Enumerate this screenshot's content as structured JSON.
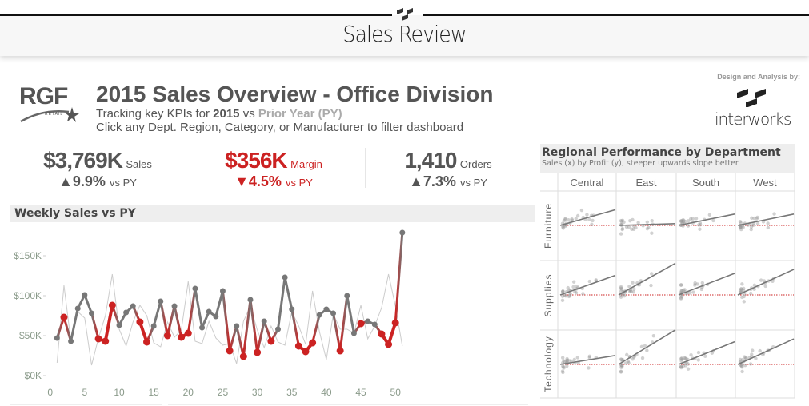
{
  "app": {
    "title": "Sales Review"
  },
  "header": {
    "logo_text": "RGF",
    "logo_sub": "RETAIL",
    "title": "2015 Sales Overview - Office Division",
    "sub_prefix": "Tracking key KPIs for ",
    "sub_year": "2015",
    "sub_vs": " vs ",
    "sub_py": "Prior Year (PY)",
    "instruction": "Click any Dept. Region, Category, or Manufacturer to filter dashboard",
    "credit": "Design and Analysis by:",
    "partner_logo": "interworks"
  },
  "kpis": [
    {
      "value": "$3,769K",
      "label": "Sales",
      "arrow": "▲",
      "delta": "9.9%",
      "vs": "vs PY",
      "color": "#555555"
    },
    {
      "value": "$356K",
      "label": "Margin",
      "arrow": "▼",
      "delta": "4.5%",
      "vs": "vs PY",
      "color": "#cc2222"
    },
    {
      "value": "1,410",
      "label": "Orders",
      "arrow": "▲",
      "delta": "7.3%",
      "vs": "vs PY",
      "color": "#555555"
    }
  ],
  "weekly": {
    "title": "Weekly Sales vs PY"
  },
  "regional": {
    "title": "Regional Performance by Department",
    "subtitle": "Sales (x) by Profit (y), steeper upwards slope better"
  },
  "colors": {
    "below_py": "#cc2222",
    "above_py": "#777777",
    "py": "#cccccc",
    "zero_line": "#cc2222"
  },
  "chart_data": [
    {
      "type": "line",
      "title": "Weekly Sales vs PY",
      "x_ticks": [
        "0",
        "5",
        "10",
        "15",
        "20",
        "25",
        "30",
        "35",
        "40",
        "45",
        "50"
      ],
      "y_ticks": [
        "$0K",
        "$50K",
        "$100K",
        "$150K"
      ],
      "ylim": [
        0,
        190
      ],
      "xlim": [
        -1,
        52
      ],
      "x": [
        1,
        2,
        3,
        4,
        5,
        6,
        7,
        8,
        9,
        10,
        11,
        12,
        13,
        14,
        15,
        16,
        17,
        18,
        19,
        20,
        21,
        22,
        23,
        24,
        25,
        26,
        27,
        28,
        29,
        30,
        31,
        32,
        33,
        34,
        35,
        36,
        37,
        38,
        39,
        40,
        41,
        42,
        43,
        44,
        45,
        46,
        47,
        48,
        49,
        50,
        51
      ],
      "series": [
        {
          "key": "sales",
          "values": [
            47,
            73,
            43,
            84,
            101,
            78,
            46,
            43,
            88,
            63,
            79,
            87,
            67,
            42,
            62,
            93,
            50,
            87,
            48,
            53,
            109,
            60,
            80,
            74,
            106,
            31,
            62,
            24,
            95,
            29,
            68,
            43,
            58,
            123,
            83,
            37,
            30,
            41,
            76,
            83,
            78,
            31,
            100,
            53,
            65,
            68,
            64,
            52,
            39,
            66,
            179
          ]
        },
        {
          "key": "py",
          "values": [
            16,
            113,
            43,
            80,
            72,
            13,
            47,
            75,
            127,
            58,
            37,
            67,
            88,
            75,
            41,
            36,
            67,
            48,
            57,
            118,
            43,
            40,
            68,
            47,
            38,
            40,
            15,
            68,
            87,
            57,
            35,
            62,
            42,
            38,
            80,
            62,
            39,
            106,
            55,
            20,
            77,
            58,
            58,
            53,
            88,
            46,
            62,
            85,
            127,
            87,
            37
          ]
        }
      ]
    },
    {
      "type": "scatter",
      "title": "Regional Performance by Department",
      "columns": [
        "Central",
        "East",
        "South",
        "West"
      ],
      "rows": [
        "Furniture",
        "Supplies",
        "Technology"
      ],
      "trend_slopes": [
        [
          0.28,
          0.03,
          0.2,
          0.2
        ],
        [
          0.35,
          0.55,
          0.38,
          0.45
        ],
        [
          0.16,
          0.6,
          0.4,
          0.45
        ]
      ]
    }
  ]
}
